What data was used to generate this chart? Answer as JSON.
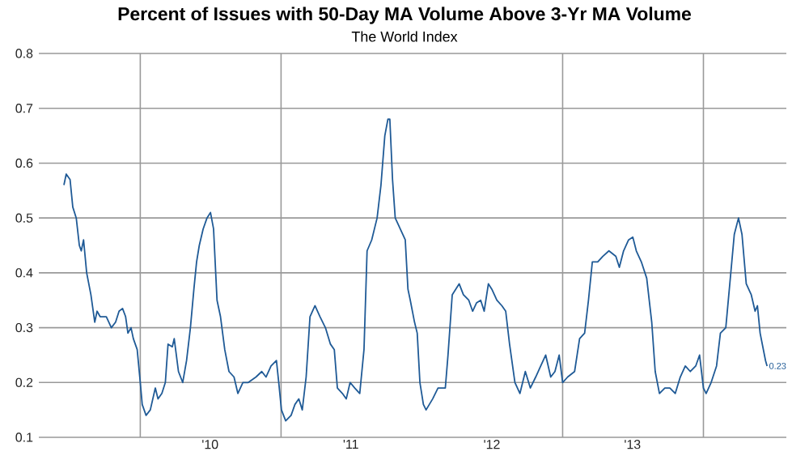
{
  "chart_data": {
    "type": "line",
    "title": "Percent of Issues with 50-Day MA Volume Above 3-Yr MA Volume",
    "subtitle": "The World Index",
    "series": [
      {
        "color": "#1f5a96",
        "x": [
          "2009-06-17",
          "2009-06-23",
          "2009-07-03",
          "2009-07-10",
          "2009-07-19",
          "2009-07-27",
          "2009-08-01",
          "2009-08-07",
          "2009-08-15",
          "2009-08-26",
          "2009-09-05",
          "2009-09-11",
          "2009-09-19",
          "2009-10-05",
          "2009-10-18",
          "2009-10-29",
          "2009-11-07",
          "2009-11-16",
          "2009-11-24",
          "2009-11-30",
          "2009-12-08",
          "2009-12-14",
          "2009-12-24",
          "2010-01-01",
          "2010-01-06",
          "2010-01-16",
          "2010-01-27",
          "2010-02-09",
          "2010-02-16",
          "2010-02-26",
          "2010-03-07",
          "2010-03-14",
          "2010-03-25",
          "2010-03-30",
          "2010-04-10",
          "2010-04-21",
          "2010-05-01",
          "2010-05-11",
          "2010-05-20",
          "2010-05-27",
          "2010-06-03",
          "2010-06-13",
          "2010-06-23",
          "2010-07-02",
          "2010-07-10",
          "2010-07-19",
          "2010-07-28",
          "2010-08-08",
          "2010-08-19",
          "2010-09-01",
          "2010-09-11",
          "2010-09-24",
          "2010-10-08",
          "2010-10-28",
          "2010-11-12",
          "2010-11-23",
          "2010-12-06",
          "2010-12-20",
          "2010-12-26",
          "2011-01-02",
          "2011-01-13",
          "2011-01-27",
          "2011-02-06",
          "2011-02-16",
          "2011-02-25",
          "2011-03-07",
          "2011-03-17",
          "2011-03-30",
          "2011-04-12",
          "2011-04-26",
          "2011-05-09",
          "2011-05-19",
          "2011-05-27",
          "2011-06-09",
          "2011-06-19",
          "2011-06-29",
          "2011-07-11",
          "2011-07-24",
          "2011-08-04",
          "2011-08-12",
          "2011-08-24",
          "2011-09-07",
          "2011-09-17",
          "2011-09-27",
          "2011-10-05",
          "2011-10-10",
          "2011-10-17",
          "2011-10-24",
          "2011-11-06",
          "2011-11-19",
          "2011-11-26",
          "2011-12-02",
          "2011-12-13",
          "2011-12-20",
          "2011-12-27",
          "2012-01-05",
          "2012-01-12",
          "2012-01-29",
          "2012-02-12",
          "2012-03-02",
          "2012-03-09",
          "2012-03-20",
          "2012-03-29",
          "2012-04-07",
          "2012-04-18",
          "2012-05-02",
          "2012-05-12",
          "2012-05-22",
          "2012-06-02",
          "2012-06-11",
          "2012-06-22",
          "2012-07-01",
          "2012-07-14",
          "2012-07-27",
          "2012-08-06",
          "2012-08-16",
          "2012-08-30",
          "2012-09-12",
          "2012-09-26",
          "2012-10-09",
          "2012-10-23",
          "2012-11-05",
          "2012-11-18",
          "2012-12-01",
          "2012-12-12",
          "2012-12-23",
          "2013-01-01",
          "2013-01-14",
          "2013-02-01",
          "2013-02-14",
          "2013-02-27",
          "2013-03-09",
          "2013-03-19",
          "2013-04-02",
          "2013-04-15",
          "2013-05-01",
          "2013-05-19",
          "2013-05-28",
          "2013-06-08",
          "2013-06-21",
          "2013-07-02",
          "2013-07-11",
          "2013-07-24",
          "2013-08-07",
          "2013-08-20",
          "2013-08-29",
          "2013-09-09",
          "2013-09-23",
          "2013-10-06",
          "2013-10-20",
          "2013-11-02",
          "2013-11-15",
          "2013-11-28",
          "2013-12-12",
          "2013-12-22",
          "2014-01-01",
          "2014-01-08",
          "2014-01-21",
          "2014-02-04",
          "2014-02-14",
          "2014-02-28",
          "2014-03-13",
          "2014-03-22",
          "2014-04-02",
          "2014-04-11",
          "2014-04-22",
          "2014-05-05",
          "2014-05-15",
          "2014-05-21",
          "2014-05-28",
          "2014-06-11",
          "2014-06-15"
        ],
        "values": [
          0.56,
          0.58,
          0.57,
          0.52,
          0.5,
          0.45,
          0.44,
          0.46,
          0.4,
          0.36,
          0.31,
          0.33,
          0.32,
          0.32,
          0.3,
          0.31,
          0.33,
          0.335,
          0.32,
          0.29,
          0.3,
          0.28,
          0.26,
          0.2,
          0.16,
          0.14,
          0.15,
          0.19,
          0.17,
          0.18,
          0.2,
          0.27,
          0.265,
          0.28,
          0.22,
          0.2,
          0.24,
          0.3,
          0.37,
          0.42,
          0.45,
          0.48,
          0.5,
          0.51,
          0.48,
          0.35,
          0.32,
          0.26,
          0.22,
          0.21,
          0.18,
          0.2,
          0.2,
          0.21,
          0.22,
          0.21,
          0.23,
          0.24,
          0.2,
          0.15,
          0.13,
          0.14,
          0.16,
          0.17,
          0.15,
          0.21,
          0.32,
          0.34,
          0.32,
          0.3,
          0.27,
          0.26,
          0.19,
          0.18,
          0.17,
          0.2,
          0.19,
          0.18,
          0.26,
          0.44,
          0.46,
          0.5,
          0.56,
          0.65,
          0.68,
          0.68,
          0.57,
          0.5,
          0.48,
          0.46,
          0.37,
          0.35,
          0.31,
          0.29,
          0.2,
          0.16,
          0.15,
          0.17,
          0.19,
          0.19,
          0.25,
          0.36,
          0.37,
          0.38,
          0.36,
          0.35,
          0.33,
          0.345,
          0.35,
          0.33,
          0.38,
          0.37,
          0.35,
          0.34,
          0.33,
          0.27,
          0.2,
          0.18,
          0.22,
          0.19,
          0.21,
          0.23,
          0.25,
          0.21,
          0.22,
          0.25,
          0.2,
          0.21,
          0.22,
          0.28,
          0.29,
          0.35,
          0.42,
          0.42,
          0.43,
          0.44,
          0.43,
          0.41,
          0.44,
          0.46,
          0.465,
          0.44,
          0.42,
          0.39,
          0.31,
          0.22,
          0.18,
          0.19,
          0.19,
          0.18,
          0.21,
          0.23,
          0.22,
          0.23,
          0.25,
          0.19,
          0.18,
          0.2,
          0.23,
          0.29,
          0.3,
          0.4,
          0.47,
          0.5,
          0.47,
          0.38,
          0.36,
          0.33,
          0.34,
          0.29,
          0.24,
          0.23
        ]
      }
    ],
    "xlim": [
      "2009-04-13",
      "2014-08-04"
    ],
    "xticks": [
      {
        "value": "2010-01-01",
        "label": null
      },
      {
        "value": "2010-07-01",
        "label": "'10"
      },
      {
        "value": "2011-01-01",
        "label": null
      },
      {
        "value": "2011-07-01",
        "label": "'11"
      },
      {
        "value": "2012-07-01",
        "label": "'12"
      },
      {
        "value": "2013-01-01",
        "label": null
      },
      {
        "value": "2013-07-01",
        "label": "'13"
      },
      {
        "value": "2014-01-01",
        "label": null
      }
    ],
    "ylim": [
      0.1,
      0.8
    ],
    "yticks": [
      0.1,
      0.2,
      0.3,
      0.4,
      0.5,
      0.6,
      0.7,
      0.8
    ],
    "grid": true,
    "annotations": [
      {
        "text": "0.23",
        "x": "2014-06-15",
        "y": 0.23
      }
    ]
  }
}
